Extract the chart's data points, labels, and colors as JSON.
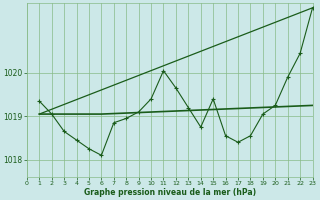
{
  "bg_color": "#cce8e8",
  "grid_color": "#88bb88",
  "line_color": "#1a5c1a",
  "xlabel": "Graphe pression niveau de la mer (hPa)",
  "ylim": [
    1017.6,
    1021.6
  ],
  "xlim": [
    0,
    23
  ],
  "yticks": [
    1018,
    1019,
    1020
  ],
  "xticks": [
    0,
    1,
    2,
    3,
    4,
    5,
    6,
    7,
    8,
    9,
    10,
    11,
    12,
    13,
    14,
    15,
    16,
    17,
    18,
    19,
    20,
    21,
    22,
    23
  ],
  "series_wavy": {
    "x": [
      1,
      2,
      3,
      4,
      5,
      6,
      7,
      8,
      9,
      10,
      11,
      12,
      13,
      14,
      15,
      16,
      17,
      18,
      19,
      20,
      21,
      22,
      23
    ],
    "y": [
      1019.35,
      1019.05,
      1018.65,
      1018.45,
      1018.25,
      1018.1,
      1018.85,
      1018.95,
      1019.1,
      1019.4,
      1020.05,
      1019.65,
      1019.2,
      1018.75,
      1019.4,
      1018.55,
      1018.4,
      1018.55,
      1019.05,
      1019.25,
      1019.9,
      1020.45,
      1021.5
    ]
  },
  "series_flat": {
    "x": [
      1,
      6,
      23
    ],
    "y": [
      1019.05,
      1019.05,
      1019.25
    ]
  },
  "series_diagonal": {
    "x": [
      1,
      23
    ],
    "y": [
      1019.05,
      1021.5
    ]
  }
}
